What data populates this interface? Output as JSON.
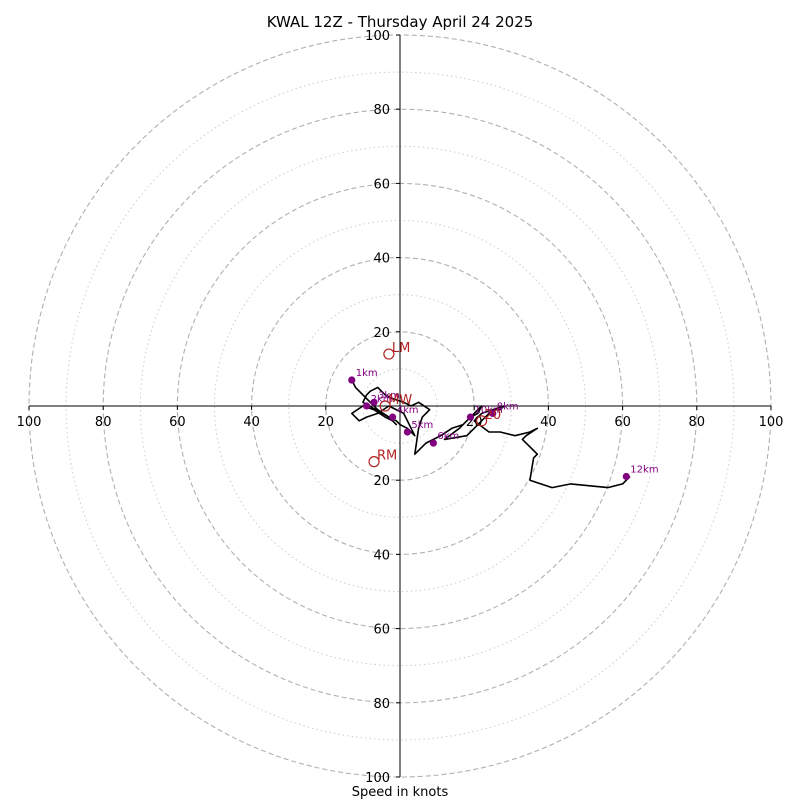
{
  "chart_data": {
    "type": "hodograph",
    "title": "KWAL 12Z - Thursday April 24 2025",
    "xlabel": "Speed in knots",
    "ylabel": "",
    "xlim": [
      -100,
      100
    ],
    "ylim": [
      -100,
      100
    ],
    "rings_major": [
      20,
      40,
      60,
      80,
      100
    ],
    "rings_minor": [
      10,
      30,
      50,
      70,
      90
    ],
    "tick_labels": [
      "100",
      "80",
      "60",
      "40",
      "20",
      "20",
      "40",
      "60",
      "80",
      "100"
    ],
    "tick_values": [
      -100,
      -80,
      -60,
      -40,
      -20,
      20,
      40,
      60,
      80,
      100
    ],
    "colors": {
      "trace": "#000000",
      "height_marker": "#800080",
      "motion_marker": "#b22222",
      "ring_major": "#b0b0b0",
      "ring_minor": "#cccccc",
      "axis": "#000000"
    },
    "trace": {
      "u": [
        -13,
        -12,
        -8,
        -6,
        -3,
        -1,
        0,
        2,
        4,
        1,
        -3,
        -6,
        -9,
        -11,
        -13,
        -10,
        -7,
        -4,
        -2,
        -1,
        -3,
        -10,
        -9,
        -8,
        -6,
        -4,
        -2,
        1,
        3,
        5,
        8,
        6,
        5,
        4,
        7,
        9,
        11,
        14,
        17,
        19,
        21,
        22,
        19,
        16,
        12,
        18,
        20,
        22,
        24,
        26,
        27,
        28,
        25,
        22,
        20,
        24,
        27,
        31,
        35,
        37,
        34,
        33,
        35,
        36,
        37,
        36,
        35,
        41,
        46,
        56,
        60,
        61,
        62
      ],
      "v": [
        7,
        5,
        1,
        -1,
        -3,
        -4,
        -5,
        -6,
        -8,
        -2,
        0,
        -2,
        -3,
        -4,
        -2,
        0,
        -1,
        -3,
        -4,
        -5,
        -3,
        1,
        3,
        4,
        5,
        3,
        2,
        1,
        0,
        1,
        -1,
        -3,
        -6,
        -13,
        -10,
        -9,
        -8,
        -6,
        -5,
        -3,
        -2,
        0,
        -3,
        -6,
        -9,
        -8,
        -6,
        -4,
        -2,
        -1,
        -1,
        0,
        -1,
        -2,
        -4,
        -7,
        -7,
        -8,
        -7,
        -6,
        -8,
        -9,
        -11,
        -12,
        -13,
        -14,
        -20,
        -22,
        -21,
        -22,
        -21,
        -20,
        -19
      ]
    },
    "height_markers": [
      {
        "label": "1km",
        "u": -13,
        "v": 7
      },
      {
        "label": "2km",
        "u": -9,
        "v": 0
      },
      {
        "label": "3km",
        "u": -7,
        "v": 1
      },
      {
        "label": "4km",
        "u": -2,
        "v": -3
      },
      {
        "label": "5km",
        "u": 2,
        "v": -7
      },
      {
        "label": "6km",
        "u": 9,
        "v": -10
      },
      {
        "label": "8km",
        "u": 25,
        "v": -2
      },
      {
        "label": "10km",
        "u": 19,
        "v": -3
      },
      {
        "label": "12km",
        "u": 61,
        "v": -19
      }
    ],
    "motion_markers": [
      {
        "label": "LM",
        "u": -3,
        "v": 14
      },
      {
        "label": "RM",
        "u": -7,
        "v": -15
      },
      {
        "label": "MW",
        "u": -4,
        "v": 0
      },
      {
        "label": "20",
        "u": 22,
        "v": -4
      }
    ]
  }
}
